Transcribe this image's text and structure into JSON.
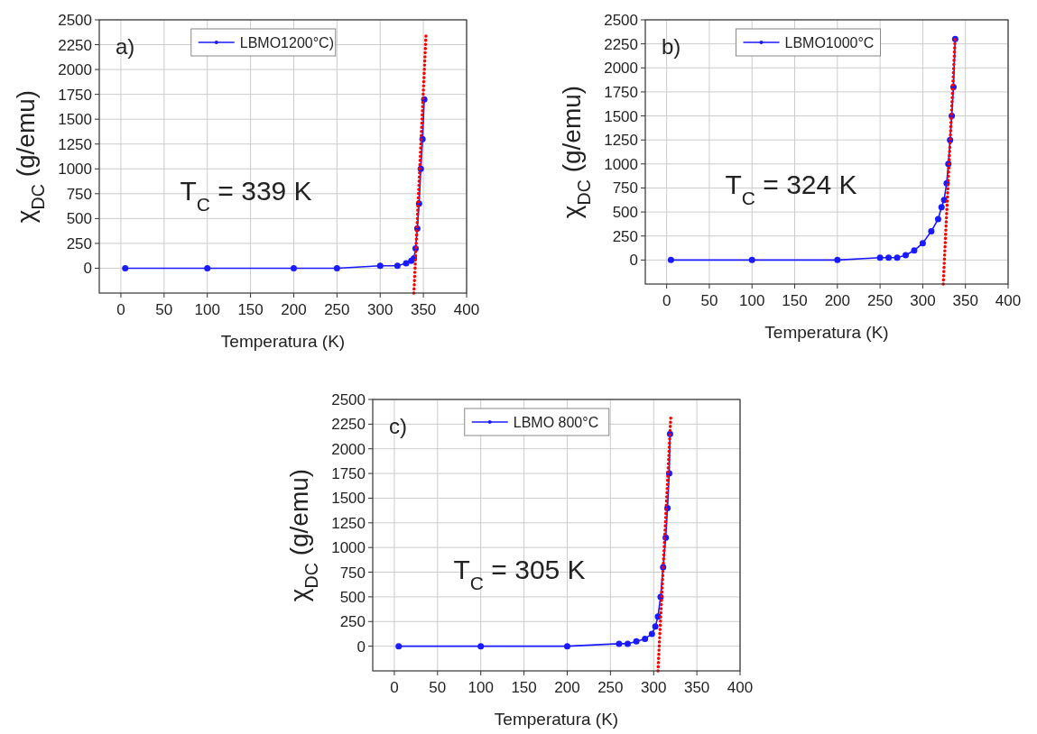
{
  "chart_data": [
    {
      "type": "line",
      "xlabel": "Temperatura (K)",
      "ylabel": "χ$_{DC}$ (g/emu)",
      "xlim": [
        -25,
        400
      ],
      "ylim": [
        -250,
        2500
      ],
      "xticks": [
        0,
        50,
        100,
        150,
        200,
        250,
        300,
        350,
        400
      ],
      "yticks": [
        0,
        250,
        500,
        750,
        1000,
        1250,
        1500,
        1750,
        2000,
        2250,
        2500
      ],
      "grid": true,
      "legend": "top",
      "annotations": [
        "a)",
        "T$_{C}$ = 339 K"
      ],
      "series": [
        {
          "name": "LBMO1200°C)",
          "color": "#1a1aff",
          "marker": "circle",
          "x": [
            5,
            100,
            200,
            250,
            300,
            320,
            330,
            336,
            339,
            341,
            343,
            345,
            347,
            349,
            351
          ],
          "values": [
            0,
            0,
            0,
            0,
            25,
            25,
            50,
            75,
            100,
            200,
            400,
            650,
            1000,
            1300,
            1700
          ]
        },
        {
          "type": "line",
          "color": "#ff0000",
          "line_style": "dotted",
          "marker": "none",
          "x": [
            339,
            353
          ],
          "values": [
            -250,
            2350
          ]
        }
      ]
    },
    {
      "type": "line",
      "xlabel": "Temperatura (K)",
      "ylabel": "χ$_{DC}$ (g/emu)",
      "xlim": [
        -25,
        400
      ],
      "ylim": [
        -250,
        2500
      ],
      "xticks": [
        0,
        50,
        100,
        150,
        200,
        250,
        300,
        350,
        400
      ],
      "yticks": [
        0,
        250,
        500,
        750,
        1000,
        1250,
        1500,
        1750,
        2000,
        2250,
        2500
      ],
      "grid": true,
      "legend": "top",
      "annotations": [
        "b)",
        "T$_{C}$ = 324 K"
      ],
      "series": [
        {
          "name": "LBMO1000°C",
          "color": "#1a1aff",
          "marker": "circle",
          "x": [
            5,
            100,
            200,
            250,
            260,
            270,
            280,
            290,
            300,
            310,
            318,
            322,
            325,
            328,
            330,
            332,
            334,
            336,
            338
          ],
          "values": [
            0,
            0,
            0,
            25,
            25,
            25,
            50,
            100,
            175,
            300,
            425,
            550,
            625,
            800,
            1000,
            1250,
            1500,
            1800,
            2300
          ]
        },
        {
          "type": "line",
          "color": "#ff0000",
          "line_style": "dotted",
          "marker": "none",
          "x": [
            324,
            338
          ],
          "values": [
            -250,
            2330
          ]
        }
      ]
    },
    {
      "type": "line",
      "xlabel": "Temperatura (K)",
      "ylabel": "χ$_{DC}$ (g/emu)",
      "xlim": [
        -25,
        400
      ],
      "ylim": [
        -250,
        2500
      ],
      "xticks": [
        0,
        50,
        100,
        150,
        200,
        250,
        300,
        350,
        400
      ],
      "yticks": [
        0,
        250,
        500,
        750,
        1000,
        1250,
        1500,
        1750,
        2000,
        2250,
        2500
      ],
      "grid": true,
      "legend": "top",
      "annotations": [
        "c)",
        "T$_{C}$ = 305 K"
      ],
      "series": [
        {
          "name": "LBMO 800°C",
          "color": "#1a1aff",
          "marker": "circle",
          "x": [
            5,
            100,
            200,
            260,
            270,
            280,
            290,
            298,
            302,
            305,
            308,
            311,
            314,
            316,
            318,
            319
          ],
          "values": [
            0,
            0,
            0,
            25,
            25,
            50,
            75,
            125,
            200,
            300,
            500,
            800,
            1100,
            1400,
            1750,
            2150
          ]
        },
        {
          "type": "line",
          "color": "#ff0000",
          "line_style": "dotted",
          "marker": "none",
          "x": [
            305,
            320
          ],
          "values": [
            -250,
            2350
          ]
        }
      ]
    }
  ]
}
